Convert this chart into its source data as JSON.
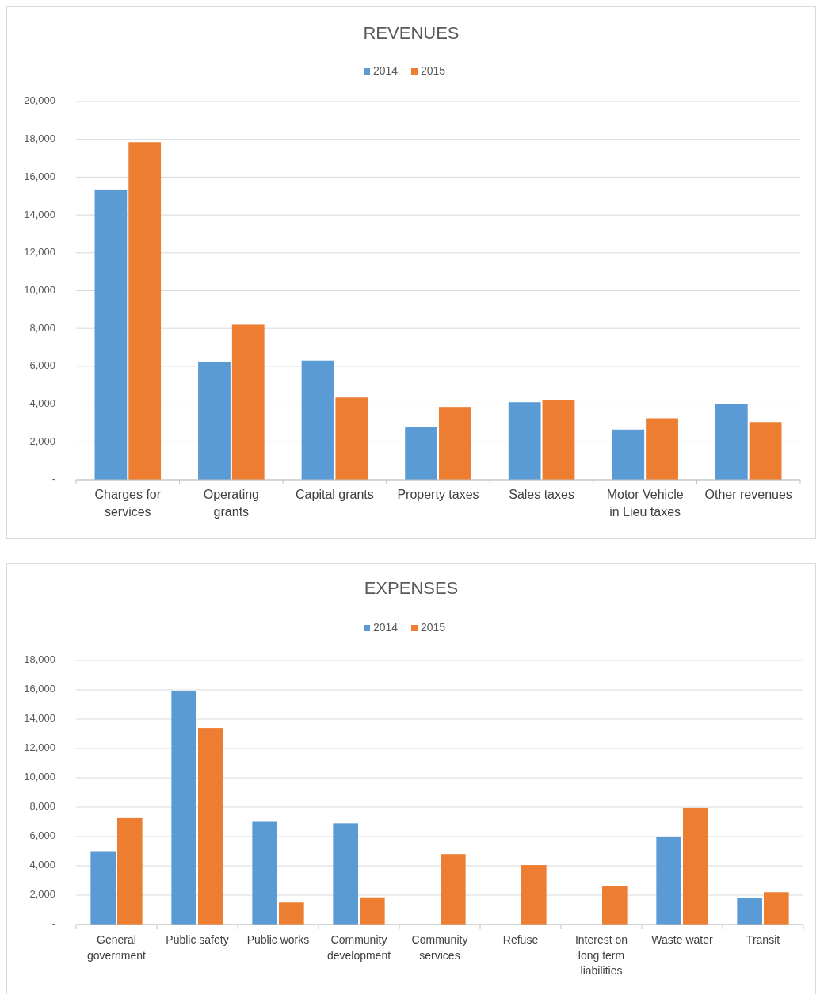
{
  "chart_data": [
    {
      "type": "bar",
      "title": "REVENUES",
      "categories": [
        "Charges for services",
        "Operating grants",
        "Capital grants",
        "Property taxes",
        "Sales taxes",
        "Motor Vehicle in Lieu taxes",
        "Other revenues"
      ],
      "series": [
        {
          "name": "2014",
          "color": "#5b9bd5",
          "values": [
            15350,
            6250,
            6300,
            2800,
            4100,
            2650,
            4000
          ]
        },
        {
          "name": "2015",
          "color": "#ed7d31",
          "values": [
            17850,
            8200,
            4350,
            3850,
            4200,
            3250,
            3050
          ]
        }
      ],
      "ylim": [
        0,
        20000
      ],
      "yticks": [
        {
          "value": 0,
          "label": "-"
        },
        {
          "value": 2000,
          "label": "2,000"
        },
        {
          "value": 4000,
          "label": "4,000"
        },
        {
          "value": 6000,
          "label": "6,000"
        },
        {
          "value": 8000,
          "label": "8,000"
        },
        {
          "value": 10000,
          "label": "10,000"
        },
        {
          "value": 12000,
          "label": "12,000"
        },
        {
          "value": 14000,
          "label": "14,000"
        },
        {
          "value": 16000,
          "label": "16,000"
        },
        {
          "value": 18000,
          "label": "18,000"
        },
        {
          "value": 20000,
          "label": "20,000"
        }
      ],
      "grid": "y",
      "legend": "top"
    },
    {
      "type": "bar",
      "title": "EXPENSES",
      "categories": [
        "General government",
        "Public safety",
        "Public works",
        "Community development",
        "Community services",
        "Refuse",
        "Interest on long term liabilities",
        "Waste water",
        "Transit"
      ],
      "series": [
        {
          "name": "2014",
          "color": "#5b9bd5",
          "values": [
            5000,
            15900,
            7000,
            6900,
            null,
            null,
            null,
            6000,
            1800
          ]
        },
        {
          "name": "2015",
          "color": "#ed7d31",
          "values": [
            7250,
            13400,
            1500,
            1850,
            4800,
            4050,
            2600,
            7950,
            2200
          ]
        }
      ],
      "ylim": [
        0,
        18000
      ],
      "yticks": [
        {
          "value": 0,
          "label": "-"
        },
        {
          "value": 2000,
          "label": "2,000"
        },
        {
          "value": 4000,
          "label": "4,000"
        },
        {
          "value": 6000,
          "label": "6,000"
        },
        {
          "value": 8000,
          "label": "8,000"
        },
        {
          "value": 10000,
          "label": "10,000"
        },
        {
          "value": 12000,
          "label": "12,000"
        },
        {
          "value": 14000,
          "label": "14,000"
        },
        {
          "value": 16000,
          "label": "16,000"
        },
        {
          "value": 18000,
          "label": "18,000"
        }
      ],
      "grid": "y",
      "legend": "top"
    }
  ]
}
